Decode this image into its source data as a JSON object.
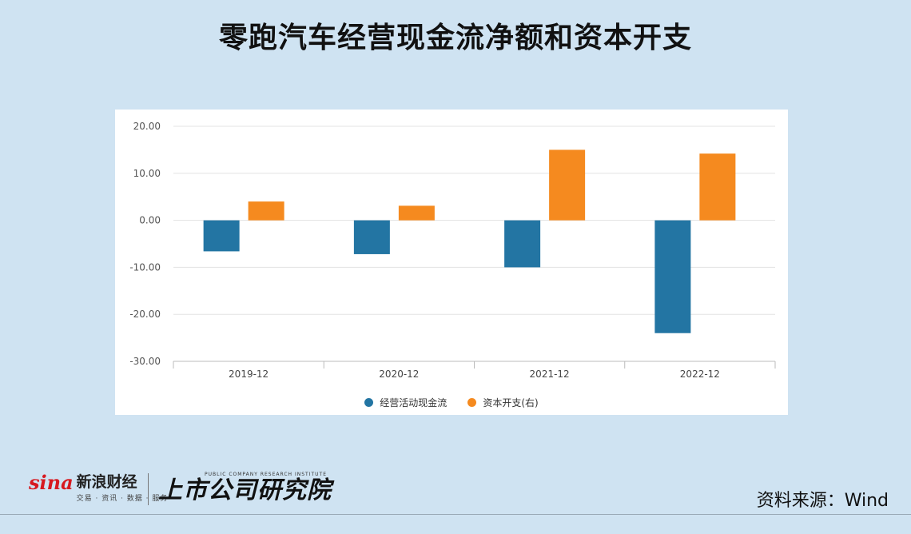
{
  "title": "零跑汽车经营现金流净额和资本开支",
  "chart_data": {
    "type": "bar",
    "categories": [
      "2019-12",
      "2020-12",
      "2021-12",
      "2022-12"
    ],
    "series": [
      {
        "name": "经营活动现金流",
        "color": "#2375a3",
        "values": [
          -6.6,
          -7.2,
          -10.0,
          -24.0
        ]
      },
      {
        "name": "资本开支(右)",
        "color": "#f58a1f",
        "values": [
          4.0,
          3.1,
          15.0,
          14.2
        ]
      }
    ],
    "y_ticks": [
      "20.00",
      "10.00",
      "0.00",
      "-10.00",
      "-20.00",
      "-30.00"
    ],
    "ylim": [
      -30,
      20
    ],
    "grid": true,
    "legend_position": "bottom"
  },
  "footer": {
    "sina_word": "sina",
    "sina_brand": "新浪财经",
    "sina_sub": "交易 · 资讯 · 数据 · 服务",
    "institute_en": "PUBLIC COMPANY RESEARCH INSTITUTE",
    "institute_cn": "上市公司研究院",
    "source": "资料来源：Wind"
  }
}
